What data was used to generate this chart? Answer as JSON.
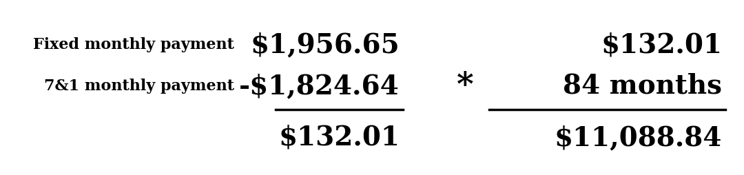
{
  "bg_color": "#ffffff",
  "text_color": "#000000",
  "label1": "Fixed monthly payment",
  "label2": "7&1 monthly payment",
  "value1": "$1,956.65",
  "value2": "-$1,824.64",
  "result1": "$132.01",
  "top_right": "$132.01",
  "multiply_label": "84 months",
  "result2": "$11,088.84",
  "multiply_sign": "*",
  "label_fontsize": 16,
  "value_fontsize": 28,
  "result_fontsize": 28
}
